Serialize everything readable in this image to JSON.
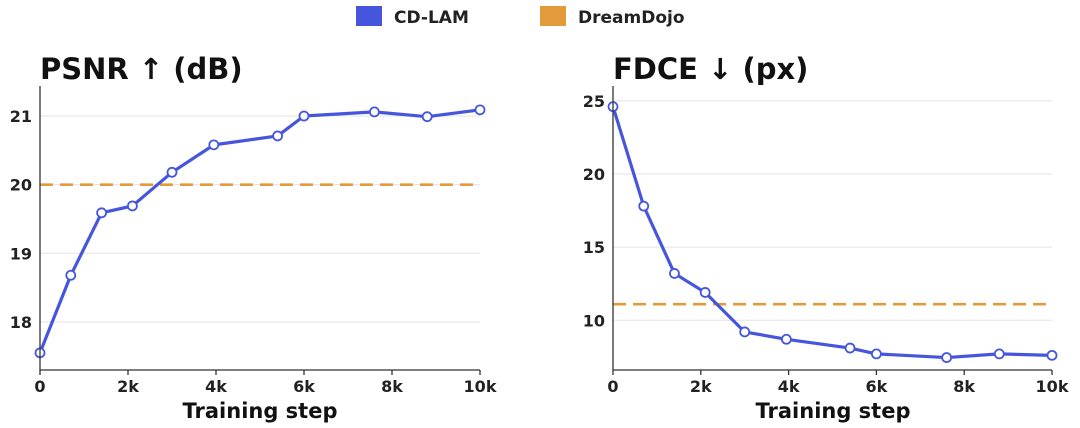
{
  "legend": {
    "entries": [
      {
        "label": "CD-LAM",
        "color": "#4656dc",
        "kind": "line"
      },
      {
        "label": "DreamDojo",
        "color": "#e39a3b",
        "kind": "dashed"
      }
    ],
    "placement": "top-center"
  },
  "chart_data": [
    {
      "type": "line",
      "title": "PSNR ↑ (dB)",
      "xlabel": "Training step",
      "ylabel": "",
      "xlim": [
        0,
        10000
      ],
      "ylim": [
        17.3,
        21.35
      ],
      "xticks": [
        0,
        2000,
        4000,
        6000,
        8000,
        10000
      ],
      "xtick_labels": [
        "0",
        "2k",
        "4k",
        "6k",
        "8k",
        "10k"
      ],
      "yticks": [
        18,
        19,
        20,
        21
      ],
      "ytick_labels": [
        "18",
        "19",
        "20",
        "21"
      ],
      "grid": "horizontal",
      "series": [
        {
          "name": "CD-LAM",
          "color": "#4656dc",
          "x": [
            0,
            700,
            1400,
            2100,
            3000,
            3950,
            5400,
            6000,
            7600,
            8800,
            10000
          ],
          "values": [
            17.55,
            18.68,
            19.59,
            19.69,
            20.18,
            20.58,
            20.71,
            21.0,
            21.06,
            20.99,
            21.09
          ]
        }
      ],
      "reference_lines": [
        {
          "name": "DreamDojo",
          "color": "#e39a3b",
          "value": 20.0,
          "style": "dashed"
        }
      ]
    },
    {
      "type": "line",
      "title": "FDCE ↓ (px)",
      "xlabel": "Training step",
      "ylabel": "",
      "xlim": [
        0,
        10000
      ],
      "ylim": [
        6.6,
        25.6
      ],
      "xticks": [
        0,
        2000,
        4000,
        6000,
        8000,
        10000
      ],
      "xtick_labels": [
        "0",
        "2k",
        "4k",
        "6k",
        "8k",
        "10k"
      ],
      "yticks": [
        10,
        15,
        20,
        25
      ],
      "ytick_labels": [
        "10",
        "15",
        "20",
        "25"
      ],
      "grid": "horizontal",
      "series": [
        {
          "name": "CD-LAM",
          "color": "#4656dc",
          "x": [
            0,
            700,
            1400,
            2100,
            3000,
            3950,
            5400,
            6000,
            7600,
            8800,
            10000
          ],
          "values": [
            24.6,
            17.8,
            13.2,
            11.9,
            9.2,
            8.7,
            8.1,
            7.7,
            7.45,
            7.7,
            7.6
          ]
        }
      ],
      "reference_lines": [
        {
          "name": "DreamDojo",
          "color": "#e39a3b",
          "value": 11.1,
          "style": "dashed"
        }
      ]
    }
  ]
}
